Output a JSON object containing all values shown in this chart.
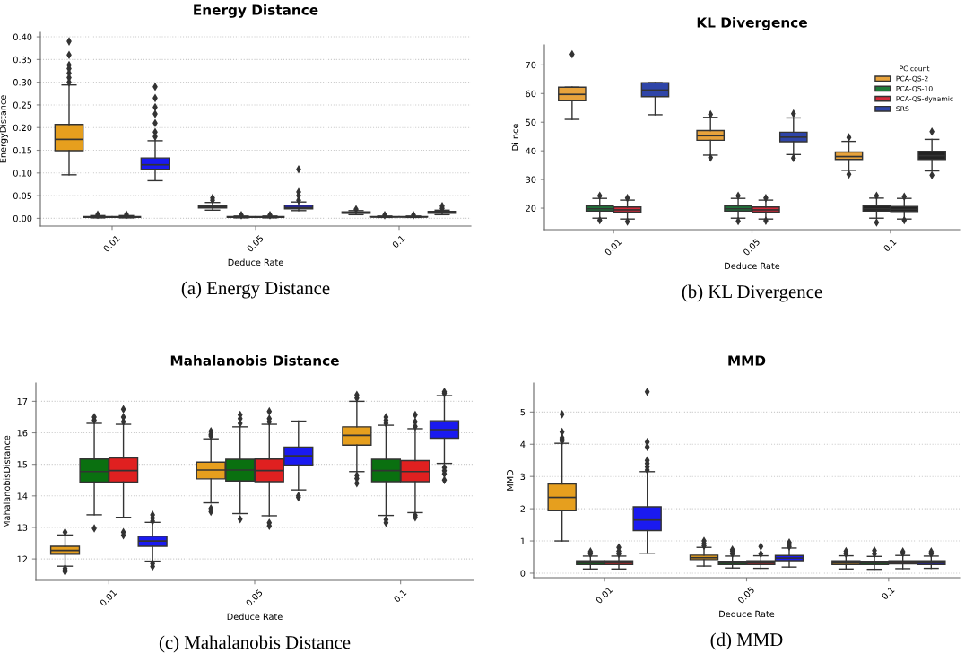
{
  "chart_data": [
    {
      "type": "box",
      "title": "Energy Distance",
      "xlabel": "Deduce Rate",
      "ylabel": "EnergyDistance",
      "categories": [
        "0.01",
        "0.05",
        "0.1"
      ],
      "ylim": [
        -0.017,
        0.41
      ],
      "yticks": [
        {
          "value": 0.0,
          "label": "0.00"
        },
        {
          "value": 0.05,
          "label": "0.05"
        },
        {
          "value": 0.1,
          "label": "0.10"
        },
        {
          "value": 0.15,
          "label": "0.15"
        },
        {
          "value": 0.2,
          "label": "0.20"
        },
        {
          "value": 0.25,
          "label": "0.25"
        },
        {
          "value": 0.3,
          "label": "0.30"
        },
        {
          "value": 0.35,
          "label": "0.35"
        },
        {
          "value": 0.4,
          "label": "0.40"
        }
      ],
      "grid": "y",
      "legend": false,
      "annotations": [
        "(a) Energy Distance"
      ],
      "series": [
        {
          "color": "#e69f1e",
          "boxes": [
            {
              "low": 0.096,
              "q1": 0.149,
              "median": 0.174,
              "q3": 0.207,
              "high": 0.294,
              "outliers": [
                0.39,
                0.36,
                0.338,
                0.33,
                0.32,
                0.31,
                0.3
              ]
            },
            {
              "low": 0.018,
              "q1": 0.023,
              "median": 0.025,
              "q3": 0.028,
              "high": 0.035,
              "outliers": [
                0.04,
                0.045
              ]
            },
            {
              "low": 0.008,
              "q1": 0.011,
              "median": 0.012,
              "q3": 0.014,
              "high": 0.017,
              "outliers": [
                0.02
              ]
            }
          ]
        },
        {
          "color": "#0a7010",
          "boxes": [
            {
              "low": 0.001,
              "q1": 0.002,
              "median": 0.003,
              "q3": 0.004,
              "high": 0.006,
              "outliers": [
                0.008
              ]
            },
            {
              "low": 0.001,
              "q1": 0.002,
              "median": 0.003,
              "q3": 0.004,
              "high": 0.005,
              "outliers": [
                0.007
              ]
            },
            {
              "low": 0.002,
              "q1": 0.003,
              "median": 0.003,
              "q3": 0.004,
              "high": 0.005,
              "outliers": [
                0.007
              ]
            }
          ]
        },
        {
          "color": "#e02020",
          "boxes": [
            {
              "low": 0.001,
              "q1": 0.002,
              "median": 0.003,
              "q3": 0.004,
              "high": 0.006,
              "outliers": [
                0.008
              ]
            },
            {
              "low": 0.001,
              "q1": 0.002,
              "median": 0.003,
              "q3": 0.004,
              "high": 0.005,
              "outliers": [
                0.007
              ]
            },
            {
              "low": 0.002,
              "q1": 0.003,
              "median": 0.003,
              "q3": 0.004,
              "high": 0.005,
              "outliers": [
                0.007
              ]
            }
          ]
        },
        {
          "color": "#1a1af0",
          "boxes": [
            {
              "low": 0.083,
              "q1": 0.108,
              "median": 0.118,
              "q3": 0.133,
              "high": 0.171,
              "outliers": [
                0.29,
                0.265,
                0.245,
                0.23,
                0.21,
                0.19,
                0.18
              ]
            },
            {
              "low": 0.017,
              "q1": 0.021,
              "median": 0.024,
              "q3": 0.029,
              "high": 0.036,
              "outliers": [
                0.04,
                0.05,
                0.058,
                0.108
              ]
            },
            {
              "low": 0.008,
              "q1": 0.011,
              "median": 0.013,
              "q3": 0.015,
              "high": 0.018,
              "outliers": [
                0.022,
                0.027
              ]
            }
          ]
        }
      ]
    },
    {
      "type": "box",
      "title": "KL Divergence",
      "xlabel": "Deduce Rate",
      "ylabel": "Di nce",
      "categories": [
        "0.01",
        "0.05",
        "0.1"
      ],
      "ylim": [
        12.5,
        77
      ],
      "yticks": [
        20,
        30,
        40,
        50,
        60,
        70
      ],
      "grid": false,
      "legend": "top right",
      "legend_title": "PC count",
      "annotations": [
        "(b) KL Divergence"
      ],
      "series": [
        {
          "name": "PCA-QS-2",
          "color": "#e8a33c",
          "boxes": [
            {
              "low": 51,
              "q1": 57.5,
              "median": 59.7,
              "q3": 62.2,
              "high": 62.2,
              "outliers": [
                73.7
              ]
            },
            {
              "low": 38.5,
              "q1": 43.7,
              "median": 45.3,
              "q3": 47.1,
              "high": 51.7,
              "outliers": [
                52.7,
                37.6
              ]
            },
            {
              "low": 33.2,
              "q1": 37,
              "median": 38,
              "q3": 39.6,
              "high": 43.3,
              "outliers": [
                44.7,
                31.8
              ]
            }
          ]
        },
        {
          "name": "PCA-QS-10",
          "color": "#1e7a3a",
          "colors": [
            "#1e7a3a",
            "#1e7a3a",
            "#222222"
          ],
          "boxes": [
            {
              "low": 16.5,
              "q1": 19,
              "median": 19.8,
              "q3": 20.8,
              "high": 23.4,
              "outliers": [
                24.3,
                15.8
              ]
            },
            {
              "low": 16.5,
              "q1": 19,
              "median": 19.8,
              "q3": 20.8,
              "high": 23.4,
              "outliers": [
                24.3,
                15.5
              ]
            },
            {
              "low": 16.5,
              "q1": 19,
              "median": 19.8,
              "q3": 20.8,
              "high": 23.5,
              "outliers": [
                24.3,
                15
              ]
            }
          ]
        },
        {
          "name": "PCA-QS-dynamic",
          "color": "#d42a3a",
          "colors": [
            "#d42a3a",
            "#d42a3a",
            "#222222"
          ],
          "boxes": [
            {
              "low": 16.2,
              "q1": 18.6,
              "median": 19.4,
              "q3": 20.4,
              "high": 22.8,
              "outliers": [
                23.5,
                15.3
              ]
            },
            {
              "low": 16.2,
              "q1": 18.6,
              "median": 19.4,
              "q3": 20.4,
              "high": 22.8,
              "outliers": [
                23.5,
                15.6
              ]
            },
            {
              "low": 16.2,
              "q1": 18.8,
              "median": 19.6,
              "q3": 20.6,
              "high": 23.4,
              "outliers": [
                24,
                15.8
              ]
            }
          ]
        },
        {
          "name": "SRS",
          "color": "#2f45a8",
          "colors": [
            "#2f45a8",
            "#2f45a8",
            "#222222"
          ],
          "boxes": [
            {
              "low": 52.6,
              "q1": 58.9,
              "median": 61.2,
              "q3": 63.8,
              "high": 63.8
            },
            {
              "low": 38.7,
              "q1": 43.2,
              "median": 44.8,
              "q3": 46.5,
              "high": 51.5,
              "outliers": [
                53,
                37.5
              ]
            },
            {
              "low": 33,
              "q1": 37,
              "median": 38.3,
              "q3": 39.8,
              "high": 44,
              "outliers": [
                46.7,
                31.5
              ]
            }
          ]
        }
      ]
    },
    {
      "type": "box",
      "title": "Mahalanobis Distance",
      "xlabel": "Deduce Rate",
      "ylabel": "MahalanobisDistance",
      "categories": [
        "0.01",
        "0.05",
        "0.1"
      ],
      "ylim": [
        11.32,
        17.58
      ],
      "yticks": [
        12,
        13,
        14,
        15,
        16,
        17
      ],
      "grid": "y",
      "legend": false,
      "annotations": [
        "(c) Mahalanobis Distance"
      ],
      "series": [
        {
          "color": "#e69f1e",
          "boxes": [
            {
              "low": 11.77,
              "q1": 12.15,
              "median": 12.27,
              "q3": 12.4,
              "high": 12.76,
              "outliers": [
                12.85,
                11.7,
                11.65,
                11.6
              ]
            },
            {
              "low": 13.78,
              "q1": 14.54,
              "median": 14.82,
              "q3": 15.07,
              "high": 15.81,
              "outliers": [
                16.05,
                15.95,
                15.9,
                13.6,
                13.5
              ]
            },
            {
              "low": 14.77,
              "q1": 15.61,
              "median": 15.92,
              "q3": 16.19,
              "high": 17.0,
              "outliers": [
                17.2,
                17.1,
                14.65,
                14.55,
                14.4
              ]
            }
          ]
        },
        {
          "color": "#0a7010",
          "boxes": [
            {
              "low": 13.4,
              "q1": 14.44,
              "median": 14.77,
              "q3": 15.17,
              "high": 16.3,
              "outliers": [
                16.5,
                16.4,
                12.97
              ]
            },
            {
              "low": 13.44,
              "q1": 14.47,
              "median": 14.82,
              "q3": 15.16,
              "high": 16.19,
              "outliers": [
                16.57,
                16.45,
                16.3,
                13.26
              ]
            },
            {
              "low": 13.38,
              "q1": 14.45,
              "median": 14.8,
              "q3": 15.16,
              "high": 16.24,
              "outliers": [
                16.5,
                16.4,
                16.3,
                13.25,
                13.15
              ]
            }
          ]
        },
        {
          "color": "#e02020",
          "boxes": [
            {
              "low": 13.32,
              "q1": 14.44,
              "median": 14.8,
              "q3": 15.2,
              "high": 16.27,
              "outliers": [
                16.75,
                16.5,
                16.35,
                12.85,
                12.75
              ]
            },
            {
              "low": 13.37,
              "q1": 14.45,
              "median": 14.8,
              "q3": 15.17,
              "high": 16.27,
              "outliers": [
                16.68,
                16.45,
                16.35,
                13.15,
                13.05
              ]
            },
            {
              "low": 13.47,
              "q1": 14.45,
              "median": 14.77,
              "q3": 15.12,
              "high": 16.13,
              "outliers": [
                16.57,
                16.35,
                16.2,
                13.38,
                13.32
              ]
            }
          ]
        },
        {
          "color": "#1a1af0",
          "boxes": [
            {
              "low": 11.93,
              "q1": 12.4,
              "median": 12.57,
              "q3": 12.72,
              "high": 13.16,
              "outliers": [
                13.4,
                13.3,
                13.2,
                11.85,
                11.76
              ]
            },
            {
              "low": 14.19,
              "q1": 14.98,
              "median": 15.27,
              "q3": 15.55,
              "high": 16.37,
              "outliers": [
                14.0,
                13.95
              ]
            },
            {
              "low": 15.03,
              "q1": 15.83,
              "median": 16.1,
              "q3": 16.38,
              "high": 17.18,
              "outliers": [
                17.3,
                17.25,
                14.9,
                14.8,
                14.7,
                14.5
              ]
            }
          ]
        }
      ]
    },
    {
      "type": "box",
      "title": "MMD",
      "xlabel": "Deduce Rate",
      "ylabel": "MMD",
      "categories": [
        "0.01",
        "0.05",
        "0.1"
      ],
      "ylim": [
        -0.14,
        5.9
      ],
      "yticks": [
        0,
        1,
        2,
        3,
        4,
        5
      ],
      "grid": "y",
      "legend": false,
      "annotations": [
        "(d) MMD"
      ],
      "series": [
        {
          "color": "#e69f1e",
          "boxes": [
            {
              "low": 1.0,
              "q1": 1.94,
              "median": 2.35,
              "q3": 2.77,
              "high": 4.03,
              "outliers": [
                4.93,
                4.38,
                4.2,
                4.15,
                4.1
              ]
            },
            {
              "low": 0.22,
              "q1": 0.42,
              "median": 0.48,
              "q3": 0.56,
              "high": 0.8,
              "outliers": [
                0.85,
                0.92,
                1.0
              ]
            },
            {
              "low": 0.13,
              "q1": 0.27,
              "median": 0.32,
              "q3": 0.38,
              "high": 0.54,
              "outliers": [
                0.6,
                0.68
              ]
            }
          ]
        },
        {
          "color": "#0a7010",
          "boxes": [
            {
              "low": 0.13,
              "q1": 0.27,
              "median": 0.33,
              "q3": 0.38,
              "high": 0.53,
              "outliers": [
                0.6,
                0.67
              ]
            },
            {
              "low": 0.16,
              "q1": 0.27,
              "median": 0.32,
              "q3": 0.37,
              "high": 0.53,
              "outliers": [
                0.6,
                0.68,
                0.73
              ]
            },
            {
              "low": 0.12,
              "q1": 0.27,
              "median": 0.32,
              "q3": 0.37,
              "high": 0.52,
              "outliers": [
                0.6,
                0.7
              ]
            }
          ]
        },
        {
          "color": "#e02020",
          "boxes": [
            {
              "low": 0.13,
              "q1": 0.27,
              "median": 0.33,
              "q3": 0.38,
              "high": 0.53,
              "outliers": [
                0.6,
                0.68,
                0.8
              ]
            },
            {
              "low": 0.15,
              "q1": 0.27,
              "median": 0.32,
              "q3": 0.38,
              "high": 0.54,
              "outliers": [
                0.6,
                0.83
              ]
            },
            {
              "low": 0.14,
              "q1": 0.29,
              "median": 0.33,
              "q3": 0.38,
              "high": 0.55,
              "outliers": [
                0.62,
                0.67
              ]
            }
          ]
        },
        {
          "color": "#1a1af0",
          "boxes": [
            {
              "low": 0.62,
              "q1": 1.32,
              "median": 1.65,
              "q3": 2.06,
              "high": 3.15,
              "outliers": [
                5.63,
                4.07,
                3.92,
                3.5,
                3.4,
                3.3,
                3.2
              ]
            },
            {
              "low": 0.19,
              "q1": 0.39,
              "median": 0.47,
              "q3": 0.55,
              "high": 0.78,
              "outliers": [
                0.83,
                0.9,
                0.95
              ]
            },
            {
              "low": 0.15,
              "q1": 0.27,
              "median": 0.32,
              "q3": 0.38,
              "high": 0.53,
              "outliers": [
                0.6,
                0.67
              ]
            }
          ]
        }
      ]
    }
  ]
}
